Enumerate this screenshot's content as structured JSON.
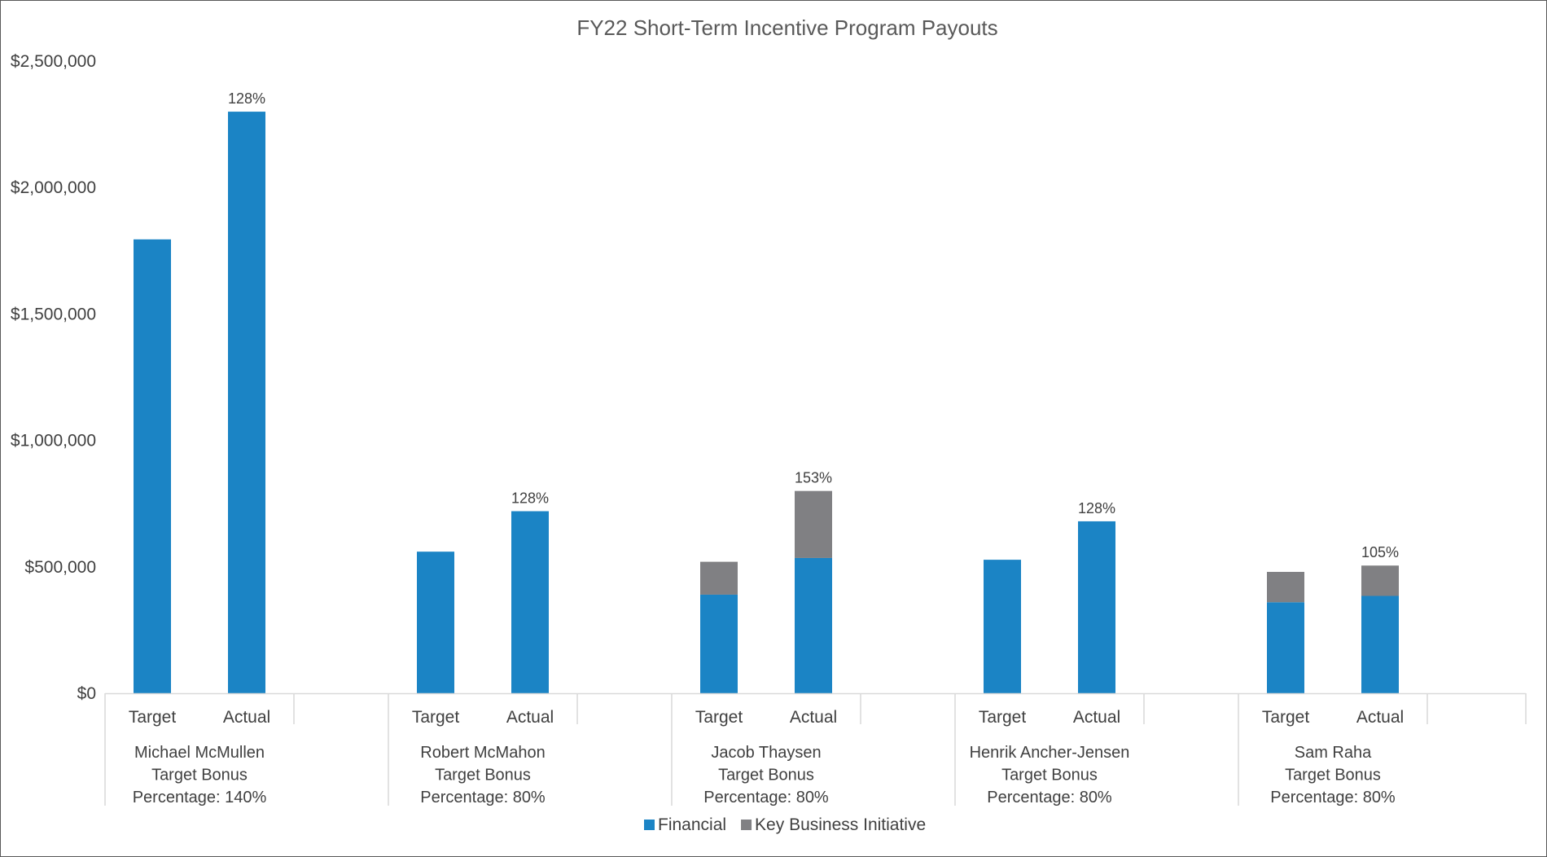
{
  "chart_data": {
    "type": "bar",
    "stacked": true,
    "title": "FY22 Short-Term Incentive Program Payouts",
    "y_axis": {
      "min": 0,
      "max": 2500000,
      "ticks": [
        "$0",
        "$500,000",
        "$1,000,000",
        "$1,500,000",
        "$2,000,000",
        "$2,500,000"
      ],
      "tick_values": [
        0,
        500000,
        1000000,
        1500000,
        2000000,
        2500000
      ],
      "grid": false
    },
    "sub_categories": [
      "Target",
      "Actual"
    ],
    "groups": [
      {
        "name_lines": [
          "Michael McMullen",
          "Target Bonus",
          "Percentage: 140%"
        ],
        "bars": [
          {
            "category": "Target",
            "financial": 1795000,
            "kbi": 0,
            "label": ""
          },
          {
            "category": "Actual",
            "financial": 2300000,
            "kbi": 0,
            "label": "128%"
          }
        ]
      },
      {
        "name_lines": [
          "Robert McMahon",
          "Target Bonus",
          "Percentage: 80%"
        ],
        "bars": [
          {
            "category": "Target",
            "financial": 560000,
            "kbi": 0,
            "label": ""
          },
          {
            "category": "Actual",
            "financial": 720000,
            "kbi": 0,
            "label": "128%"
          }
        ]
      },
      {
        "name_lines": [
          "Jacob Thaysen",
          "Target Bonus",
          "Percentage: 80%"
        ],
        "bars": [
          {
            "category": "Target",
            "financial": 390000,
            "kbi": 130000,
            "label": ""
          },
          {
            "category": "Actual",
            "financial": 535000,
            "kbi": 265000,
            "label": "153%"
          }
        ]
      },
      {
        "name_lines": [
          "Henrik Ancher-Jensen",
          "Target Bonus",
          "Percentage: 80%"
        ],
        "bars": [
          {
            "category": "Target",
            "financial": 528000,
            "kbi": 0,
            "label": ""
          },
          {
            "category": "Actual",
            "financial": 680000,
            "kbi": 0,
            "label": "128%"
          }
        ]
      },
      {
        "name_lines": [
          "Sam Raha",
          "Target Bonus",
          "Percentage: 80%"
        ],
        "bars": [
          {
            "category": "Target",
            "financial": 360000,
            "kbi": 120000,
            "label": ""
          },
          {
            "category": "Actual",
            "financial": 385000,
            "kbi": 120000,
            "label": "105%"
          }
        ]
      }
    ],
    "series": [
      {
        "name": "Financial",
        "key": "financial",
        "color": "#1b84c5"
      },
      {
        "name": "Key Business Initiative",
        "key": "kbi",
        "color": "#808083"
      }
    ],
    "legend_position": "bottom-center"
  }
}
